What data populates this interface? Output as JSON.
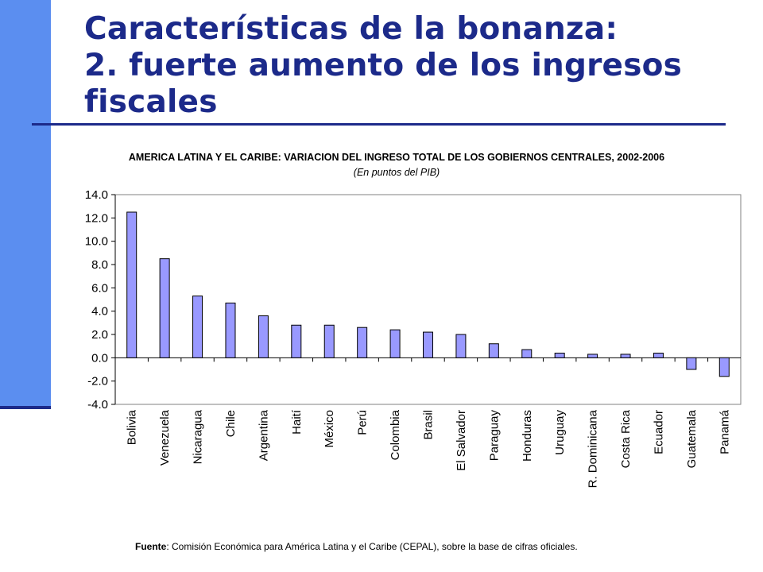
{
  "slide": {
    "title_line1": "Características de la bonanza:",
    "title_line2": "2. fuerte aumento de los ingresos fiscales",
    "footer_label": "Fuente",
    "footer_text": ": Comisión Económica para América Latina y el Caribe (CEPAL), sobre la base de cifras oficiales."
  },
  "colors": {
    "accent": "#1c2a8a",
    "side_bar": "#5b8ef0",
    "bar_fill": "#9999ff",
    "bar_stroke": "#000000"
  },
  "chart_data": {
    "type": "bar",
    "title": "AMERICA LATINA Y EL CARIBE: VARIACION DEL INGRESO TOTAL DE LOS GOBIERNOS CENTRALES, 2002-2006",
    "subtitle": "(En puntos del PIB)",
    "categories": [
      "Bolivia",
      "Venezuela",
      "Nicaragua",
      "Chile",
      "Argentina",
      "Haití",
      "México",
      "Perú",
      "Colombia",
      "Brasil",
      "El Salvador",
      "Paraguay",
      "Honduras",
      "Uruguay",
      "R. Dominicana",
      "Costa Rica",
      "Ecuador",
      "Guatemala",
      "Panamá"
    ],
    "values": [
      12.5,
      8.5,
      5.3,
      4.7,
      3.6,
      2.8,
      2.8,
      2.6,
      2.4,
      2.2,
      2.0,
      1.2,
      0.7,
      0.4,
      0.3,
      0.3,
      0.4,
      -1.0,
      -1.6
    ],
    "ylim": [
      -4.0,
      14.0
    ],
    "yticks": [
      "14.0",
      "12.0",
      "10.0",
      "8.0",
      "6.0",
      "4.0",
      "2.0",
      "0.0",
      "-2.0",
      "-4.0"
    ],
    "grid": false,
    "legend": "none"
  }
}
